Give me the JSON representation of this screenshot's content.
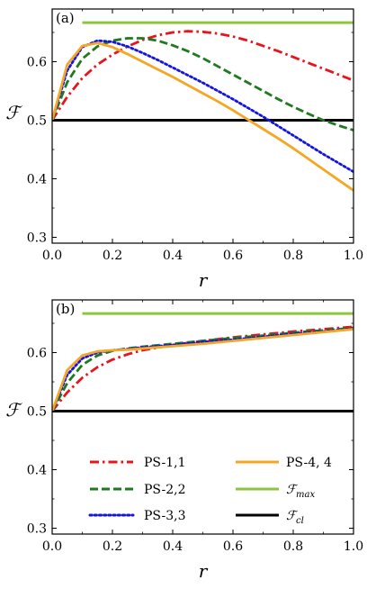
{
  "chart_data": [
    {
      "type": "line",
      "panel_label": "(a)",
      "xlabel": "r",
      "ylabel": "ℱ",
      "xlim": [
        0.0,
        1.0
      ],
      "ylim": [
        0.29,
        0.69
      ],
      "xticks": [
        "0.0",
        "0.2",
        "0.4",
        "0.6",
        "0.8",
        "1.0"
      ],
      "yticks": [
        "0.3",
        "0.4",
        "0.5",
        "0.6"
      ],
      "grid": false,
      "series": [
        {
          "name": "PS-1,1",
          "color": "#e8141c",
          "style": "dashdot",
          "x": [
            0,
            0.05,
            0.1,
            0.15,
            0.2,
            0.25,
            0.3,
            0.35,
            0.4,
            0.45,
            0.5,
            0.55,
            0.6,
            0.65,
            0.7,
            0.75,
            0.8,
            0.85,
            0.9,
            0.95,
            1.0
          ],
          "y": [
            0.5,
            0.54,
            0.572,
            0.595,
            0.612,
            0.626,
            0.637,
            0.645,
            0.65,
            0.652,
            0.651,
            0.648,
            0.643,
            0.636,
            0.627,
            0.618,
            0.608,
            0.598,
            0.588,
            0.578,
            0.568
          ]
        },
        {
          "name": "PS-2,2",
          "color": "#1e7a1e",
          "style": "dashed",
          "x": [
            0,
            0.05,
            0.1,
            0.15,
            0.2,
            0.25,
            0.3,
            0.35,
            0.4,
            0.45,
            0.5,
            0.55,
            0.6,
            0.65,
            0.7,
            0.75,
            0.8,
            0.85,
            0.9,
            0.95,
            1.0
          ],
          "y": [
            0.5,
            0.565,
            0.605,
            0.626,
            0.636,
            0.64,
            0.64,
            0.636,
            0.628,
            0.618,
            0.606,
            0.592,
            0.578,
            0.564,
            0.55,
            0.536,
            0.523,
            0.511,
            0.5,
            0.491,
            0.483
          ]
        },
        {
          "name": "PS-3,3",
          "color": "#1414e0",
          "style": "dotted",
          "x": [
            0,
            0.05,
            0.1,
            0.15,
            0.2,
            0.25,
            0.3,
            0.35,
            0.4,
            0.45,
            0.5,
            0.55,
            0.6,
            0.65,
            0.7,
            0.75,
            0.8,
            0.85,
            0.9,
            0.95,
            1.0
          ],
          "y": [
            0.5,
            0.585,
            0.625,
            0.636,
            0.634,
            0.626,
            0.615,
            0.603,
            0.59,
            0.577,
            0.564,
            0.55,
            0.536,
            0.521,
            0.506,
            0.49,
            0.474,
            0.458,
            0.442,
            0.427,
            0.412
          ]
        },
        {
          "name": "PS-4, 4",
          "color": "#f5a623",
          "style": "solid",
          "x": [
            0,
            0.05,
            0.1,
            0.15,
            0.2,
            0.25,
            0.3,
            0.35,
            0.4,
            0.45,
            0.5,
            0.55,
            0.6,
            0.65,
            0.7,
            0.75,
            0.8,
            0.85,
            0.9,
            0.95,
            1.0
          ],
          "y": [
            0.5,
            0.595,
            0.627,
            0.632,
            0.625,
            0.613,
            0.6,
            0.587,
            0.574,
            0.56,
            0.546,
            0.532,
            0.517,
            0.501,
            0.485,
            0.469,
            0.452,
            0.434,
            0.416,
            0.398,
            0.38
          ]
        },
        {
          "name": "F_max",
          "color": "#8cc63f",
          "style": "solid",
          "x": [
            0.1,
            1.0
          ],
          "y": [
            0.6667,
            0.6667
          ]
        },
        {
          "name": "F_cl",
          "color": "#000000",
          "style": "solid",
          "x": [
            0.0,
            1.0
          ],
          "y": [
            0.5,
            0.5
          ]
        }
      ]
    },
    {
      "type": "line",
      "panel_label": "(b)",
      "xlabel": "r",
      "ylabel": "ℱ",
      "xlim": [
        0.0,
        1.0
      ],
      "ylim": [
        0.29,
        0.69
      ],
      "xticks": [
        "0.0",
        "0.2",
        "0.4",
        "0.6",
        "0.8",
        "1.0"
      ],
      "yticks": [
        "0.3",
        "0.4",
        "0.5",
        "0.6"
      ],
      "grid": false,
      "legend_position": "lower-center",
      "series": [
        {
          "name": "PS-1,1",
          "color": "#e8141c",
          "style": "dashdot",
          "x": [
            0,
            0.05,
            0.1,
            0.15,
            0.2,
            0.25,
            0.3,
            0.4,
            0.5,
            0.6,
            0.7,
            0.8,
            0.9,
            1.0
          ],
          "y": [
            0.5,
            0.532,
            0.557,
            0.575,
            0.588,
            0.597,
            0.604,
            0.613,
            0.62,
            0.626,
            0.631,
            0.636,
            0.64,
            0.644
          ]
        },
        {
          "name": "PS-2,2",
          "color": "#1e7a1e",
          "style": "dashed",
          "x": [
            0,
            0.05,
            0.1,
            0.15,
            0.2,
            0.25,
            0.3,
            0.4,
            0.5,
            0.6,
            0.7,
            0.8,
            0.9,
            1.0
          ],
          "y": [
            0.5,
            0.548,
            0.579,
            0.595,
            0.603,
            0.607,
            0.61,
            0.615,
            0.62,
            0.625,
            0.629,
            0.634,
            0.638,
            0.642
          ]
        },
        {
          "name": "PS-3,3",
          "color": "#1414e0",
          "style": "dotted",
          "x": [
            0,
            0.05,
            0.1,
            0.15,
            0.2,
            0.25,
            0.3,
            0.4,
            0.5,
            0.6,
            0.7,
            0.8,
            0.9,
            1.0
          ],
          "y": [
            0.5,
            0.562,
            0.59,
            0.6,
            0.604,
            0.606,
            0.609,
            0.613,
            0.618,
            0.622,
            0.627,
            0.632,
            0.636,
            0.641
          ]
        },
        {
          "name": "PS-4, 4",
          "color": "#f5a623",
          "style": "solid",
          "x": [
            0,
            0.05,
            0.1,
            0.15,
            0.2,
            0.25,
            0.3,
            0.4,
            0.5,
            0.6,
            0.7,
            0.8,
            0.9,
            1.0
          ],
          "y": [
            0.5,
            0.57,
            0.595,
            0.602,
            0.604,
            0.605,
            0.607,
            0.611,
            0.615,
            0.62,
            0.625,
            0.63,
            0.635,
            0.64
          ]
        },
        {
          "name": "F_max",
          "color": "#8cc63f",
          "style": "solid",
          "x": [
            0.1,
            1.0
          ],
          "y": [
            0.6667,
            0.6667
          ]
        },
        {
          "name": "F_cl",
          "color": "#000000",
          "style": "solid",
          "x": [
            0.0,
            1.0
          ],
          "y": [
            0.5,
            0.5
          ]
        }
      ]
    }
  ],
  "legend": {
    "items": [
      {
        "label": "PS-1,1",
        "sub": "",
        "color": "#e8141c",
        "style": "dashdot"
      },
      {
        "label": "PS-2,2",
        "sub": "",
        "color": "#1e7a1e",
        "style": "dashed"
      },
      {
        "label": "PS-3,3",
        "sub": "",
        "color": "#1414e0",
        "style": "dotted"
      },
      {
        "label": "PS-4, 4",
        "sub": "",
        "color": "#f5a623",
        "style": "solid"
      },
      {
        "label": "ℱ",
        "sub": "max",
        "color": "#8cc63f",
        "style": "solid"
      },
      {
        "label": "ℱ",
        "sub": "cl",
        "color": "#000000",
        "style": "solid"
      }
    ]
  }
}
